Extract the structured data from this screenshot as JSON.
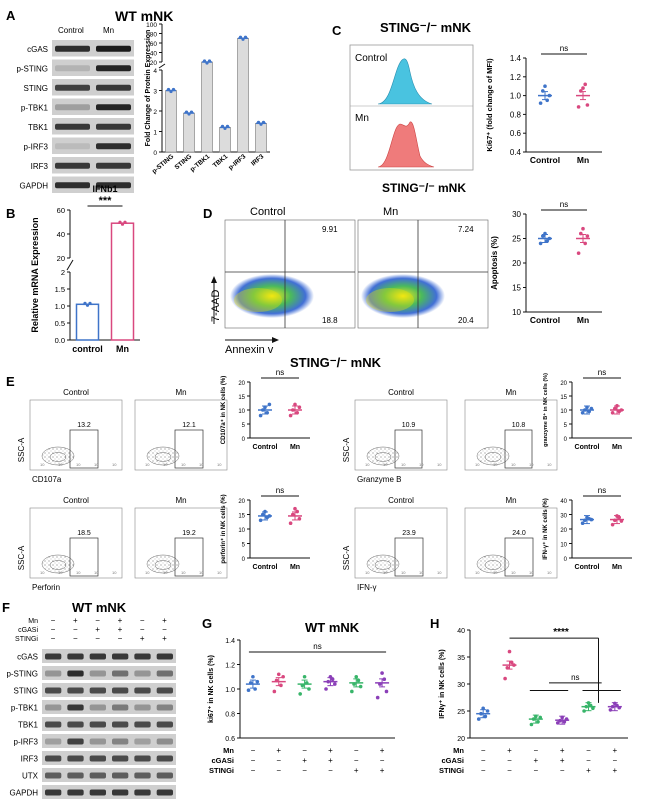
{
  "colors": {
    "blue": "#3f74c9",
    "pink": "#d9487f",
    "green": "#38b56a",
    "purple": "#8b3fb8",
    "bar_gray": "#dcdcdc",
    "cyan_hist": "#49c3e0",
    "red_hist": "#ef7b7b"
  },
  "panel_A": {
    "letter": "A",
    "title": "WT mNK",
    "lanes": [
      "Control",
      "Mn"
    ],
    "blots": [
      "cGAS",
      "p-STING",
      "STING",
      "p-TBK1",
      "TBK1",
      "p-IRF3",
      "IRF3",
      "GAPDH"
    ]
  },
  "panel_B": {
    "letter": "B"
  },
  "panel_C": {
    "letter": "C",
    "title": "STING⁻/⁻ mNK",
    "hist_labels": [
      "Control",
      "Mn"
    ]
  },
  "panel_D": {
    "letter": "D",
    "title": "STING⁻/⁻ mNK",
    "plot_labels": [
      "Control",
      "Mn"
    ],
    "quadrants": {
      "control_ur": "9.91",
      "control_lr": "18.8",
      "mn_ur": "7.24",
      "mn_lr": "20.4"
    },
    "y_axis": "7-AAD",
    "x_axis": "Annexin v"
  },
  "panel_E": {
    "letter": "E",
    "title": "STING⁻/⁻ mNK",
    "flow": [
      {
        "marker": "CD107a",
        "control_gate": "13.2",
        "mn_gate": "12.1"
      },
      {
        "marker": "Granzyme B",
        "control_gate": "10.9",
        "mn_gate": "10.8"
      },
      {
        "marker": "Perforin",
        "control_gate": "18.5",
        "mn_gate": "19.2"
      },
      {
        "marker": "IFN-γ",
        "control_gate": "23.9",
        "mn_gate": "24.0"
      }
    ],
    "ssc_label": "SSC-A",
    "lane_labels": [
      "Control",
      "Mn"
    ]
  },
  "panel_F": {
    "letter": "F",
    "title": "WT mNK",
    "treatments": [
      {
        "name": "Mn",
        "signs": [
          "−",
          "+",
          "−",
          "+",
          "−",
          "+"
        ]
      },
      {
        "name": "cGASi",
        "signs": [
          "−",
          "−",
          "+",
          "+",
          "−",
          "−"
        ]
      },
      {
        "name": "STINGi",
        "signs": [
          "−",
          "−",
          "−",
          "−",
          "+",
          "+"
        ]
      }
    ],
    "blots": [
      "cGAS",
      "p-STING",
      "STING",
      "p-TBK1",
      "TBK1",
      "p-IRF3",
      "IRF3",
      "UTX",
      "GAPDH"
    ]
  },
  "panel_G": {
    "letter": "G",
    "title": "WT mNK"
  },
  "panel_H": {
    "letter": "H"
  },
  "chart_data": [
    {
      "id": "A_bar",
      "type": "bar",
      "ylabel": "Fold Change of Protein Expression",
      "categories": [
        "p-STING",
        "STING",
        "p-TBK1",
        "TBK1",
        "p-IRF3",
        "IRF3"
      ],
      "values": [
        3.0,
        1.9,
        20,
        1.2,
        70,
        1.4
      ],
      "yticks": [
        "0",
        "1",
        "2",
        "3",
        "4",
        "20",
        "40",
        "60",
        "80",
        "100"
      ],
      "ylim": [
        0,
        100
      ],
      "axis_break": [
        4,
        20
      ]
    },
    {
      "id": "B_bar",
      "type": "bar",
      "title": "IFNb1",
      "ylabel": "Relative mRNA Expression",
      "categories": [
        "control",
        "Mn"
      ],
      "values": [
        1.05,
        49
      ],
      "yticks": [
        "0.0",
        "0.5",
        "1.0",
        "1.5",
        "2",
        "20",
        "40",
        "60"
      ],
      "ylim": [
        0,
        60
      ],
      "axis_break": [
        2,
        20
      ],
      "significance": "***"
    },
    {
      "id": "C_scatter",
      "type": "scatter",
      "ylabel": "Ki67⁺ (fold change of MFI)",
      "categories": [
        "Control",
        "Mn"
      ],
      "means": [
        1.0,
        1.0
      ],
      "points": [
        [
          0.92,
          1.05,
          1.1,
          0.95,
          1.0
        ],
        [
          0.88,
          1.05,
          1.08,
          1.12,
          0.9
        ]
      ],
      "yticks": [
        "0.4",
        "0.6",
        "0.8",
        "1.0",
        "1.2",
        "1.4"
      ],
      "ylim": [
        0.4,
        1.4
      ],
      "significance": "ns"
    },
    {
      "id": "D_scatter",
      "type": "scatter",
      "ylabel": "Apoptosis (%)",
      "categories": [
        "Control",
        "Mn"
      ],
      "means": [
        25,
        25
      ],
      "points": [
        [
          24,
          25.5,
          26,
          24.5,
          25
        ],
        [
          22,
          26,
          27,
          24,
          25.5
        ]
      ],
      "yticks": [
        "10",
        "15",
        "20",
        "25",
        "30"
      ],
      "ylim": [
        10,
        30
      ],
      "significance": "ns"
    },
    {
      "id": "E1",
      "type": "scatter",
      "ylabel": "CD107a⁺ in NK cells (%)",
      "categories": [
        "Control",
        "Mn"
      ],
      "means": [
        10,
        10
      ],
      "points": [
        [
          8,
          10,
          11,
          9,
          12
        ],
        [
          8,
          10,
          12,
          9,
          11
        ]
      ],
      "yticks": [
        "0",
        "5",
        "10",
        "15",
        "20"
      ],
      "ylim": [
        0,
        20
      ],
      "significance": "ns"
    },
    {
      "id": "E2",
      "type": "scatter",
      "ylabel": "granzyme B⁺ in NK cells (%)",
      "categories": [
        "Control",
        "Mn"
      ],
      "means": [
        10,
        10
      ],
      "points": [
        [
          9,
          10,
          11,
          9.5,
          10.5
        ],
        [
          9,
          10.5,
          11.5,
          9.5,
          10
        ]
      ],
      "yticks": [
        "0",
        "5",
        "10",
        "15",
        "20"
      ],
      "ylim": [
        0,
        20
      ],
      "significance": "ns"
    },
    {
      "id": "E3",
      "type": "scatter",
      "ylabel": "perforin⁺ in NK cells (%)",
      "categories": [
        "Control",
        "Mn"
      ],
      "means": [
        14.5,
        14.5
      ],
      "points": [
        [
          13,
          15,
          16,
          14,
          14.5
        ],
        [
          12,
          15,
          17,
          16,
          13.5
        ]
      ],
      "yticks": [
        "0",
        "5",
        "10",
        "15",
        "20"
      ],
      "ylim": [
        0,
        20
      ],
      "significance": "ns"
    },
    {
      "id": "E4",
      "type": "scatter",
      "ylabel": "IFN-γ⁺ in NK cells (%)",
      "categories": [
        "Control",
        "Mn"
      ],
      "means": [
        26.5,
        26.5
      ],
      "points": [
        [
          24,
          26,
          28,
          27,
          26.5
        ],
        [
          23,
          26,
          29,
          28,
          25.5
        ]
      ],
      "yticks": [
        "0",
        "10",
        "20",
        "30",
        "40"
      ],
      "ylim": [
        0,
        40
      ],
      "significance": "ns"
    },
    {
      "id": "G_scatter",
      "type": "scatter",
      "ylabel": "ki67⁺ in NK cells (%)",
      "means": [
        1.04,
        1.06,
        1.04,
        1.06,
        1.05,
        1.05
      ],
      "points": [
        [
          0.99,
          1.05,
          1.1,
          1.0,
          1.06
        ],
        [
          0.98,
          1.07,
          1.12,
          1.03,
          1.1
        ],
        [
          0.96,
          1.03,
          1.1,
          1.05,
          1.0
        ],
        [
          1.0,
          1.06,
          1.1,
          1.08,
          1.04
        ],
        [
          0.98,
          1.04,
          1.1,
          1.07,
          1.02
        ],
        [
          0.93,
          1.04,
          1.13,
          1.08,
          0.98
        ]
      ],
      "yticks": [
        "0.6",
        "0.8",
        "1.0",
        "1.2",
        "1.4"
      ],
      "ylim": [
        0.6,
        1.4
      ],
      "significance": "ns"
    },
    {
      "id": "H_scatter",
      "type": "scatter",
      "ylabel": "IFNγ⁺ in NK cells (%)",
      "means": [
        24.5,
        33.5,
        23.5,
        23.3,
        25.8,
        25.8
      ],
      "points": [
        [
          23.5,
          24.5,
          25.5,
          24,
          25
        ],
        [
          31,
          33,
          36,
          34,
          33.5
        ],
        [
          22.5,
          23.5,
          24,
          23,
          23.8
        ],
        [
          22.8,
          23.2,
          23.8,
          23,
          23.5
        ],
        [
          25,
          25.8,
          26.5,
          26,
          25.5
        ],
        [
          25.2,
          25.8,
          26.4,
          26,
          25.6
        ]
      ],
      "yticks": [
        "20",
        "25",
        "30",
        "35",
        "40"
      ],
      "ylim": [
        20,
        40
      ],
      "significance": [
        "****",
        "ns"
      ]
    }
  ]
}
